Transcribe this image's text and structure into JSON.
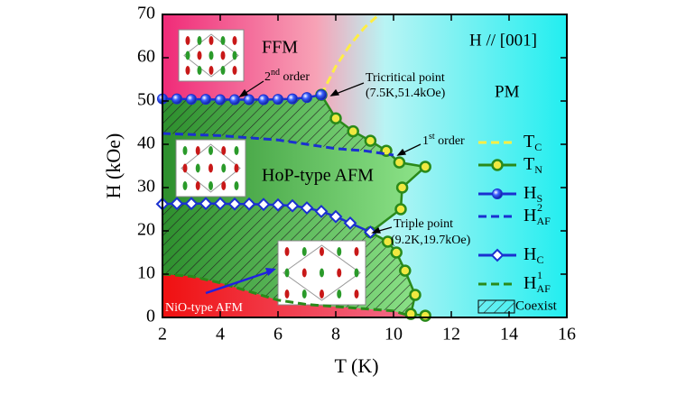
{
  "chart_data": {
    "type": "line",
    "xlabel": "T (K)",
    "ylabel": "H (kOe)",
    "xlim": [
      2,
      16
    ],
    "xticks": [
      2,
      4,
      6,
      8,
      10,
      12,
      14,
      16
    ],
    "ylim": [
      0,
      70
    ],
    "yticks": [
      0,
      10,
      20,
      30,
      40,
      50,
      60,
      70
    ],
    "series": [
      {
        "name": "T",
        "sub": "C",
        "color": "#ffee44",
        "dash": true,
        "marker": "none",
        "x": [
          7.5,
          8.0,
          8.5,
          9.0,
          9.5
        ],
        "values": [
          51.4,
          58,
          63,
          67,
          70
        ]
      },
      {
        "name": "T",
        "sub": "N",
        "color": "#2a8a1a",
        "dash": false,
        "marker": "circle",
        "marker_fill": "#f0e840",
        "x": [
          7.5,
          8.0,
          8.6,
          9.2,
          9.75,
          10.2,
          11.1,
          10.3,
          10.25,
          9.2,
          9.8,
          10.1,
          10.4,
          10.75,
          10.6,
          11.1
        ],
        "values": [
          51.4,
          46,
          43,
          40.8,
          38.5,
          35.8,
          34.8,
          30,
          25,
          19.7,
          17.5,
          15,
          10.8,
          5.2,
          0.8,
          0.4
        ]
      },
      {
        "name": "H",
        "sub": "S",
        "color": "#1a30d0",
        "dash": false,
        "marker": "sphere",
        "marker_fill": "#2a50ff",
        "x": [
          2,
          2.5,
          3,
          3.5,
          4,
          4.5,
          5,
          5.5,
          6,
          6.5,
          7,
          7.5
        ],
        "values": [
          50.5,
          50.5,
          50.4,
          50.4,
          50.3,
          50.3,
          50.3,
          50.3,
          50.4,
          50.5,
          50.8,
          51.4
        ]
      },
      {
        "name": "H",
        "sub": "AF",
        "sup": "2",
        "color": "#1a30d0",
        "dash": true,
        "marker": "none",
        "x": [
          2,
          4,
          6,
          7,
          8,
          9,
          10
        ],
        "values": [
          42.5,
          42,
          41,
          40,
          39,
          38.5,
          37.5
        ]
      },
      {
        "name": "H",
        "sub": "C",
        "color": "#1a30d0",
        "dash": false,
        "marker": "diamond",
        "marker_fill": "#ffffff",
        "x": [
          2,
          2.5,
          3,
          3.5,
          4,
          4.5,
          5,
          5.5,
          6,
          6.5,
          7,
          7.5,
          8,
          8.5,
          9.2
        ],
        "values": [
          26.2,
          26.3,
          26.3,
          26.3,
          26.3,
          26.2,
          26.2,
          26.1,
          26,
          25.8,
          25.3,
          24.5,
          23.3,
          21.8,
          19.7
        ]
      },
      {
        "name": "H",
        "sub": "AF",
        "sup": "1",
        "color": "#2a8a1a",
        "dash": true,
        "marker": "none",
        "x": [
          2,
          3,
          4,
          5,
          6,
          7,
          8,
          9,
          10,
          10.5
        ],
        "values": [
          10,
          9.5,
          8,
          6,
          4,
          3,
          2.5,
          2,
          1.5,
          0.5
        ]
      }
    ],
    "coexist_label": "Coexist",
    "annotations": {
      "ffm": "FFM",
      "field": "H // [001]",
      "pm": "PM",
      "hop": "HoP-type AFM",
      "nio": "NiO-type AFM",
      "tricritical": "Tricritical point",
      "tricritical_coords": "(7.5K,51.4kOe)",
      "second": "2",
      "second_sup": "nd",
      "second_rest": " order",
      "first": "1",
      "first_sup": "st",
      "first_rest": " order",
      "triple": "Triple point",
      "triple_coords": "(9.2K,19.7kOe)"
    }
  }
}
